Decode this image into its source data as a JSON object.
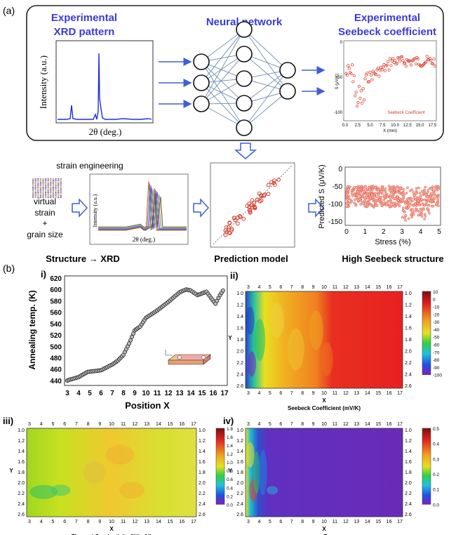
{
  "panel_a": {
    "label": "(a)",
    "box1": {
      "title_line1": "Experimental",
      "title_line2": "XRD pattern",
      "ylabel": "Intensity (a.u.)",
      "xlabel": "2θ (deg.)"
    },
    "nn_title": "Neural network",
    "box3": {
      "title_line1": "Experimental",
      "title_line2": "Seebeck coefficient",
      "ylabel": "S (μV/K)",
      "xlabel": "X (mm)",
      "legend": "Seebeck Coefficient",
      "xticks": [
        "0.0",
        "2.5",
        "5.0",
        "7.5",
        "10.0",
        "12.5",
        "15.0",
        "17.5"
      ],
      "yticks": [
        "0",
        "-50",
        "-100"
      ]
    },
    "strain_eng": "strain engineering",
    "virtual_lines": [
      "virtual",
      "strain",
      "+",
      "grain size"
    ],
    "small_xrd": {
      "ylabel": "Intensity (a.u.)",
      "xlabel": "2θ (deg.)"
    },
    "stage_labels": [
      "Structure → XRD",
      "Prediction model",
      "High Seebeck structure"
    ],
    "seebeck_plot": {
      "ylabel": "Predicted S (μV/K)",
      "xlabel": "Stress (%)",
      "xticks": [
        "0",
        "1",
        "2",
        "3",
        "4",
        "5"
      ],
      "yticks": [
        "0",
        "-50",
        "-100",
        "-150"
      ]
    }
  },
  "panel_b": {
    "label": "(b)",
    "i": {
      "label": "i)",
      "ylabel": "Annealing temp. (K)",
      "xlabel": "Position X",
      "yticks": [
        "620",
        "600",
        "580",
        "560",
        "540",
        "520",
        "500",
        "480",
        "460",
        "440"
      ],
      "xticks": [
        "3",
        "4",
        "5",
        "6",
        "7",
        "8",
        "9",
        "10",
        "11",
        "12",
        "13",
        "14",
        "15",
        "16",
        "17"
      ]
    },
    "ii": {
      "label": "ii)",
      "xlabel": "X",
      "ylabel": "Y",
      "caption": "Seebeck Coefficient (mV/K)",
      "colorbar": [
        "10",
        "0",
        "-10",
        "-20",
        "-30",
        "-40",
        "-50",
        "-60",
        "-70",
        "-80",
        "-90",
        "-100"
      ]
    },
    "iii": {
      "label": "iii)",
      "xlabel": "X",
      "ylabel": "Y",
      "caption": "Thermal Conductivity (W/m/K)",
      "colorbar": [
        "1.8",
        "1.6",
        "1.4",
        "1.2",
        "1.0",
        "0.8",
        "0.6",
        "0.4",
        "0.2",
        "0.0"
      ]
    },
    "iv": {
      "label": "iv)",
      "xlabel": "X",
      "ylabel": "Y",
      "caption": "zT",
      "colorbar": [
        "0.5",
        "0.4",
        "0.3",
        "0.2",
        "0.1",
        "0.0"
      ]
    },
    "map_xticks": [
      "3",
      "4",
      "5",
      "6",
      "7",
      "8",
      "9",
      "10",
      "11",
      "12",
      "13",
      "14",
      "15",
      "16",
      "17"
    ],
    "map_yticks": [
      "1.0",
      "1.2",
      "1.4",
      "1.6",
      "1.8",
      "2.0",
      "2.2",
      "2.4",
      "2.6"
    ]
  },
  "colors": {
    "title_blue": "#3b3bd6",
    "arrow_blue": "#3f5fd8",
    "xrd_blue": "#1f2fd8",
    "scatter_red": "#d63a2a"
  }
}
